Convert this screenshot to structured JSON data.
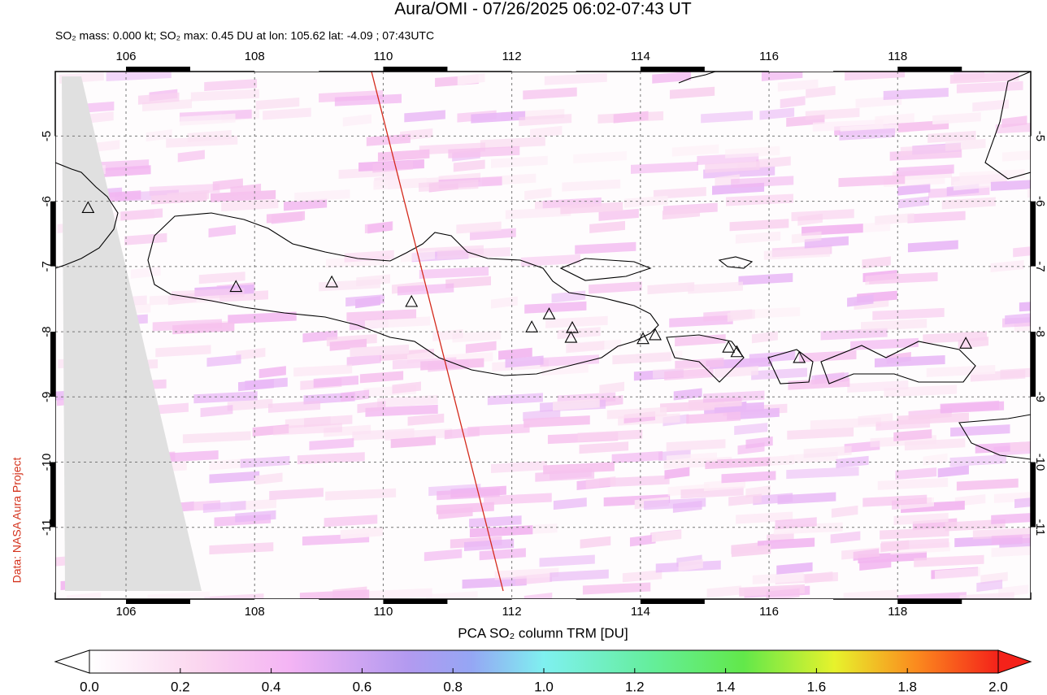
{
  "title": "Aura/OMI - 07/26/2025 06:02-07:43 UT",
  "subtitle": "SO₂ mass: 0.000 kt; SO₂ max: 0.45 DU at lon: 105.62 lat: -4.09 ; 07:43UTC",
  "credit": "Data: NASA Aura Project",
  "map": {
    "lonlim": [
      104.9,
      120.07
    ],
    "latlim": [
      -12.1,
      -4.01
    ],
    "lonticks": [
      106,
      108,
      110,
      112,
      114,
      116,
      118
    ],
    "latticks": [
      -5,
      -6,
      -7,
      -8,
      -9,
      -10,
      -11
    ],
    "grid": true
  },
  "volcanoes": [
    {
      "lon": 105.41,
      "lat": -6.11
    },
    {
      "lon": 107.71,
      "lat": -7.32
    },
    {
      "lon": 109.2,
      "lat": -7.25
    },
    {
      "lon": 110.44,
      "lat": -7.55
    },
    {
      "lon": 112.31,
      "lat": -7.94
    },
    {
      "lon": 112.58,
      "lat": -7.74
    },
    {
      "lon": 112.94,
      "lat": -7.95
    },
    {
      "lon": 112.92,
      "lat": -8.1
    },
    {
      "lon": 114.04,
      "lat": -8.12
    },
    {
      "lon": 114.23,
      "lat": -8.06
    },
    {
      "lon": 115.37,
      "lat": -8.25
    },
    {
      "lon": 115.5,
      "lat": -8.32
    },
    {
      "lon": 116.47,
      "lat": -8.41
    },
    {
      "lon": 119.06,
      "lat": -8.19
    }
  ],
  "colorbar": {
    "label": "PCA SO₂ column TRM [DU]",
    "lim": [
      0,
      2
    ],
    "ticks": [
      {
        "value": 0,
        "label": "0.0"
      },
      {
        "value": 0.2,
        "label": "0.2"
      },
      {
        "value": 0.4,
        "label": "0.4"
      },
      {
        "value": 0.6,
        "label": "0.6"
      },
      {
        "value": 0.8,
        "label": "0.8"
      },
      {
        "value": 1,
        "label": "1.0"
      },
      {
        "value": 1.2,
        "label": "1.2"
      },
      {
        "value": 1.4,
        "label": "1.4"
      },
      {
        "value": 1.6,
        "label": "1.6"
      },
      {
        "value": 1.8,
        "label": "1.8"
      },
      {
        "value": 2,
        "label": "2.0"
      }
    ]
  }
}
